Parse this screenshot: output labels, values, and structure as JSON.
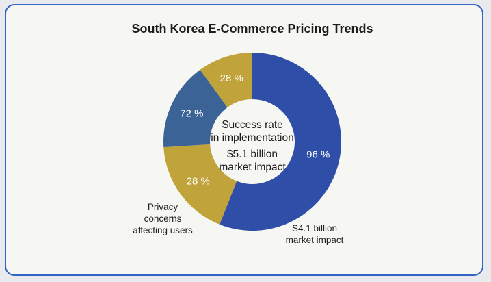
{
  "chart_data": {
    "type": "donut",
    "title": "South Korea E-Commerce Pricing Trends",
    "segments": [
      {
        "label": "96 %",
        "value": 28,
        "color": "#2e4ea8"
      },
      {
        "label": "28 %",
        "value": 9,
        "color": "#c0a33a"
      },
      {
        "label": "72 %",
        "value": 8,
        "color": "#3c6395"
      },
      {
        "label": "28 %",
        "value": 5,
        "color": "#c0a33a"
      }
    ],
    "center_text": [
      "Success rate",
      "in implementation",
      "$5.1 billion",
      "market impact"
    ],
    "annotations": [
      {
        "lines": [
          "S4.1 billion",
          "market impact"
        ],
        "anchor": "bottom-right"
      },
      {
        "lines": [
          "Privacy",
          "concerns",
          "affecting users"
        ],
        "anchor": "bottom-left"
      }
    ]
  }
}
